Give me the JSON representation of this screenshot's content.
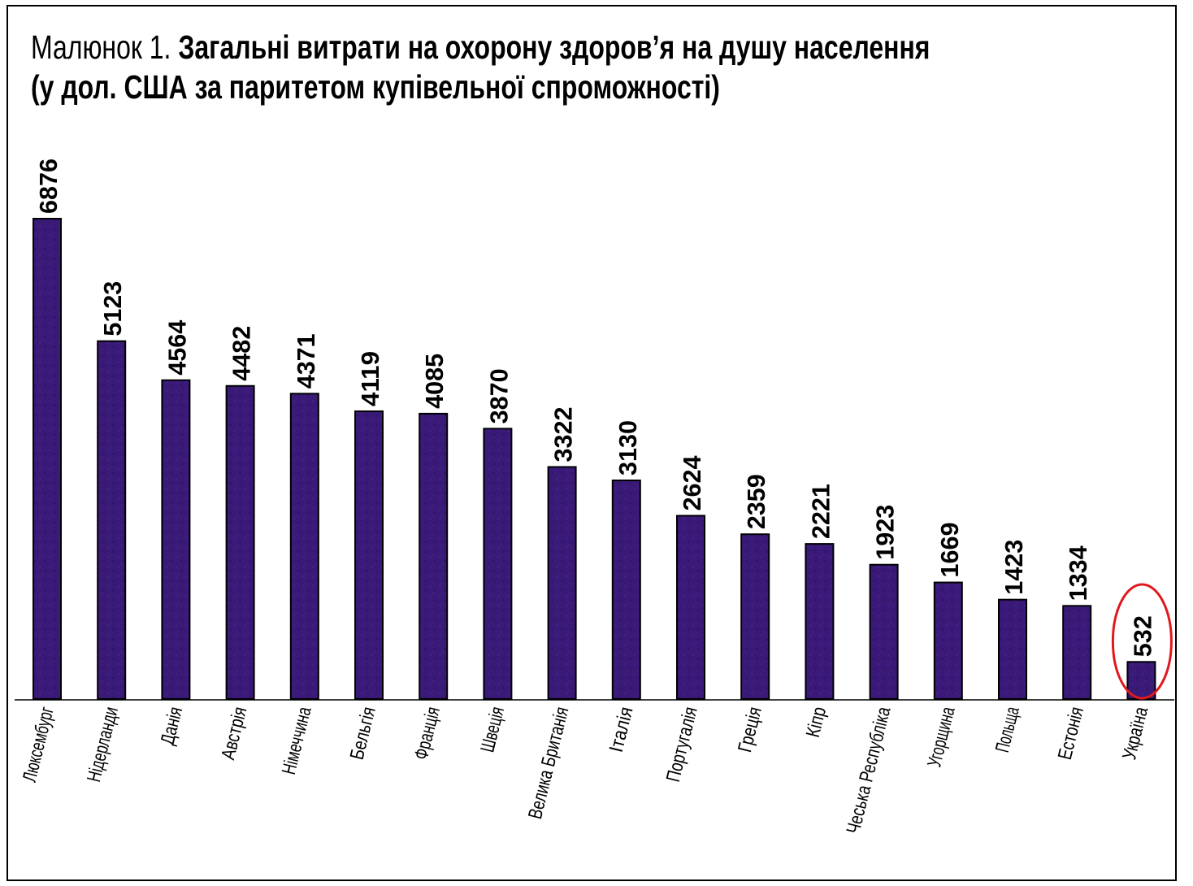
{
  "title": {
    "prefix": "Малюнок 1.",
    "main": "Загальні витрати на охорону здоров’я на душу населення",
    "line2": "(у дол. США за паритетом купівельної спроможності)"
  },
  "colors": {
    "bar": "#3a1a78",
    "bar_stroke": "#000000",
    "highlight_circle": "#e0191e",
    "axis": "#000000"
  },
  "chart_data": {
    "type": "bar",
    "categories": [
      "Люксембург",
      "Нідерланди",
      "Данія",
      "Австрія",
      "Німеччина",
      "Бельгія",
      "Франція",
      "Швеція",
      "Велика Британія",
      "Італія",
      "Португалія",
      "Греція",
      "Кіпр",
      "Чеська Республіка",
      "Угорщина",
      "Польща",
      "Естонія",
      "Україна"
    ],
    "values": [
      6876,
      5123,
      4564,
      4482,
      4371,
      4119,
      4085,
      3870,
      3322,
      3130,
      2624,
      2359,
      2221,
      1923,
      1669,
      1423,
      1334,
      532
    ],
    "data_labels": [
      "6876",
      "5123",
      "4564",
      "4482",
      "4371",
      "4119",
      "4085",
      "3870",
      "3322",
      "3130",
      "2624",
      "2359",
      "2221",
      "1923",
      "1669",
      "1423",
      "1334",
      "532"
    ],
    "highlighted_category": "Україна",
    "ylim": [
      0,
      6876
    ],
    "grid": false,
    "legend": "none"
  }
}
